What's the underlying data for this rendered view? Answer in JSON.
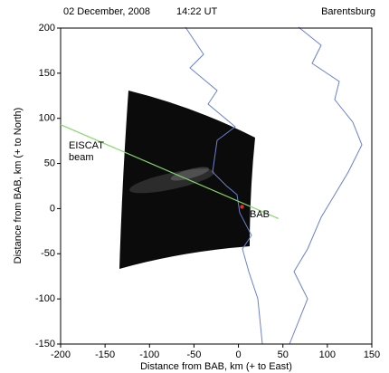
{
  "chart_data": {
    "type": "line",
    "date": "02 December, 2008",
    "time": "14:22 UT",
    "station": "Barentsburg",
    "xlabel": "Distance from BAB, km (+ to East)",
    "ylabel": "Distance from BAB, km (+ to North)",
    "xlim": [
      -200,
      150
    ],
    "ylim": [
      -150,
      200
    ],
    "xticks": [
      -200,
      -150,
      -100,
      -50,
      0,
      50,
      100,
      150
    ],
    "yticks": [
      -150,
      -100,
      -50,
      0,
      50,
      100,
      150,
      200
    ],
    "series": [
      {
        "name": "EISCAT beam",
        "color": "#86d96f",
        "x": [
          -200,
          45
        ],
        "values": [
          93,
          -11
        ]
      },
      {
        "name": "BAB",
        "color": "#e0321e",
        "x": [
          4
        ],
        "values": [
          2
        ]
      }
    ]
  }
}
